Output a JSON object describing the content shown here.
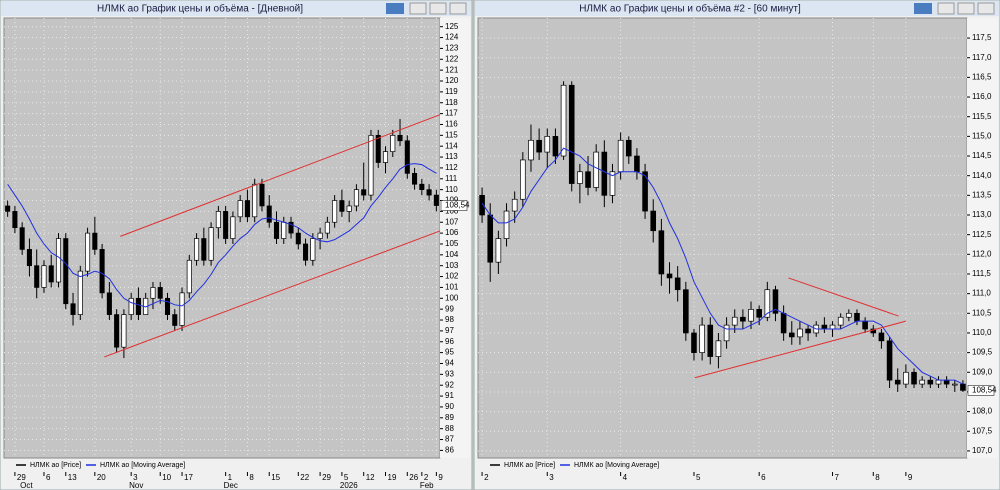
{
  "chart_data": [
    {
      "type": "candlestick",
      "title": "НЛМК ао График цены и объёма - [Дневной]",
      "categories": [
        null,
        "29",
        null,
        null,
        null,
        "6",
        null,
        null,
        "13",
        null,
        null,
        null,
        "20",
        null,
        null,
        null,
        null,
        "3",
        null,
        null,
        null,
        "10",
        null,
        null,
        "17",
        null,
        null,
        null,
        null,
        null,
        "1",
        null,
        null,
        "8",
        null,
        null,
        "15",
        null,
        null,
        null,
        "22",
        null,
        null,
        "29",
        null,
        null,
        "5",
        null,
        null,
        "12",
        null,
        null,
        "19",
        null,
        null,
        "26",
        null,
        "2",
        null,
        "9"
      ],
      "periods": [
        null,
        null,
        "Oct",
        null,
        null,
        null,
        null,
        null,
        null,
        null,
        null,
        null,
        null,
        null,
        null,
        null,
        null,
        "Nov",
        null,
        null,
        null,
        null,
        null,
        null,
        null,
        null,
        null,
        null,
        null,
        null,
        "Dec",
        null,
        null,
        null,
        null,
        null,
        null,
        null,
        null,
        null,
        null,
        null,
        null,
        null,
        null,
        null,
        "2026",
        null,
        null,
        null,
        null,
        null,
        null,
        null,
        null,
        null,
        null,
        "Feb",
        null,
        null
      ],
      "ylim": [
        85.3,
        125.8
      ],
      "yticks": [
        86,
        87,
        88,
        89,
        90,
        91,
        92,
        93,
        94,
        95,
        96,
        97,
        98,
        99,
        100,
        101,
        102,
        103,
        104,
        105,
        106,
        107,
        108,
        109,
        110,
        111,
        112,
        113,
        114,
        115,
        116,
        117,
        118,
        119,
        120,
        121,
        122,
        123,
        124,
        125
      ],
      "grid": true,
      "last": {
        "value": 108.54,
        "label": "108,54"
      },
      "series": [
        {
          "name": "НЛМК ао [Price]",
          "color": "#000000",
          "open": [
            108.5,
            108,
            106.5,
            104.5,
            103,
            101,
            103,
            101.5,
            105.5,
            99.5,
            98.5,
            102.5,
            106,
            104.5,
            100.5,
            98.5,
            95.5,
            98.5,
            100,
            98.5,
            100,
            101,
            100,
            98.5,
            97.5,
            100.5,
            103.5,
            105.5,
            103.5,
            106.5,
            108,
            105.5,
            107.5,
            109,
            107.5,
            110.5,
            108.5,
            107,
            105.5,
            107,
            106,
            105,
            103.5,
            105.5,
            106,
            107,
            109,
            108,
            108.5,
            110,
            109.5,
            115,
            112.5,
            113.5,
            115,
            114.5,
            111.5,
            110.5,
            110,
            109.5
          ],
          "high": [
            109,
            108.5,
            107,
            105.5,
            104.5,
            103.5,
            104,
            106,
            106,
            100.5,
            103,
            106.5,
            107.5,
            105,
            101.5,
            99,
            99,
            100.5,
            101,
            100.5,
            101.5,
            101.5,
            100.5,
            99,
            101,
            104,
            106,
            106.5,
            107,
            108.5,
            108.5,
            108,
            109.5,
            110,
            111,
            111,
            109.5,
            108,
            107.5,
            107.5,
            106.5,
            105.5,
            106,
            106.5,
            107.5,
            109.5,
            110,
            109,
            110.5,
            112.5,
            115.5,
            115.5,
            114,
            115.5,
            116.5,
            115,
            112,
            111,
            110.5,
            110
          ],
          "low": [
            107.5,
            106,
            104,
            102,
            100,
            100.5,
            101,
            101,
            99,
            97.5,
            98,
            102,
            104,
            100,
            98,
            95,
            94.5,
            98,
            98,
            98.5,
            99,
            99.5,
            98,
            97,
            97,
            100,
            103,
            103,
            103,
            105.5,
            105,
            105,
            107,
            107,
            107,
            108,
            106.5,
            105,
            105,
            105.5,
            104.5,
            103,
            103,
            104.5,
            105.5,
            106.5,
            107.5,
            107,
            108,
            109,
            109,
            112,
            111.5,
            113,
            114,
            111,
            110,
            109.5,
            109,
            108
          ],
          "close": [
            108,
            106.5,
            104.5,
            103,
            101,
            103,
            101.5,
            105.5,
            99.5,
            98.5,
            102.5,
            106,
            104.5,
            100.5,
            98.5,
            95.5,
            98.5,
            100,
            98.5,
            100,
            101,
            100,
            98.5,
            97.5,
            100.5,
            103.5,
            105.5,
            103.5,
            106.5,
            108,
            105.5,
            107.5,
            109,
            107.5,
            110.5,
            108.5,
            107,
            105.5,
            107,
            106,
            105,
            103.5,
            105.5,
            106,
            107,
            109,
            108,
            108.5,
            110,
            109.5,
            115,
            112.5,
            113.5,
            115,
            114.5,
            111.5,
            110.5,
            110,
            109.5,
            108.54
          ]
        },
        {
          "name": "НЛМК ао [Moving Average]",
          "color": "#2030e0",
          "values": [
            110.5,
            109.5,
            108.5,
            107.3,
            106,
            105,
            104.2,
            103.8,
            103.2,
            102.3,
            102,
            102.2,
            102.5,
            102.3,
            101.8,
            100.8,
            100,
            99.6,
            99.4,
            99.2,
            99.5,
            99.8,
            99.7,
            99.4,
            99.3,
            99.8,
            100.6,
            101.3,
            102.2,
            103.3,
            104,
            104.8,
            105.5,
            106,
            106.8,
            107.3,
            107.4,
            107.2,
            107,
            106.8,
            106.5,
            106,
            105.6,
            105.3,
            105.2,
            105.4,
            105.8,
            106.2,
            106.8,
            107.4,
            108.5,
            109.3,
            110.2,
            111,
            111.9,
            112.3,
            112.4,
            112.3,
            111.9,
            111.5
          ]
        }
      ],
      "trend_lines": [
        {
          "color": "#e03030",
          "x": [
            15.5,
            60.7
          ],
          "values": [
            105.7,
            116.9
          ]
        },
        {
          "color": "#e03030",
          "x": [
            13.3,
            60.7
          ],
          "values": [
            94.6,
            106.2
          ]
        }
      ]
    },
    {
      "type": "candlestick",
      "title": "НЛМК ао График цены и объёма #2 - [60 минут]",
      "categories": [
        "2",
        null,
        null,
        null,
        null,
        null,
        null,
        null,
        "3",
        null,
        null,
        null,
        null,
        null,
        null,
        null,
        null,
        "4",
        null,
        null,
        null,
        null,
        null,
        null,
        null,
        null,
        "5",
        null,
        null,
        null,
        null,
        null,
        null,
        null,
        "6",
        null,
        null,
        null,
        null,
        null,
        null,
        null,
        null,
        "7",
        null,
        null,
        null,
        null,
        "8",
        null,
        null,
        null,
        "9",
        null,
        null,
        null,
        null,
        null,
        null,
        null
      ],
      "ylim": [
        106.82,
        118.01
      ],
      "yticks": [
        {
          "value": 107,
          "label": "107,0"
        },
        {
          "value": 107.5,
          "label": "107,5"
        },
        {
          "value": 108,
          "label": "108,0"
        },
        {
          "value": 108.5,
          "label": "108,5"
        },
        {
          "value": 109,
          "label": "109,0"
        },
        {
          "value": 109.5,
          "label": "109,5"
        },
        {
          "value": 110,
          "label": "110,0"
        },
        {
          "value": 110.5,
          "label": "110,5"
        },
        {
          "value": 111,
          "label": "111,0"
        },
        {
          "value": 111.5,
          "label": "111,5"
        },
        {
          "value": 112,
          "label": "112,0"
        },
        {
          "value": 112.5,
          "label": "112,5"
        },
        {
          "value": 113,
          "label": "113,0"
        },
        {
          "value": 113.5,
          "label": "113,5"
        },
        {
          "value": 114,
          "label": "114,0"
        },
        {
          "value": 114.5,
          "label": "114,5"
        },
        {
          "value": 115,
          "label": "115,0"
        },
        {
          "value": 115.5,
          "label": "115,5"
        },
        {
          "value": 116,
          "label": "116,0"
        },
        {
          "value": 116.5,
          "label": "116,5"
        },
        {
          "value": 117,
          "label": "117,0"
        },
        {
          "value": 117.5,
          "label": "117,5"
        }
      ],
      "grid": true,
      "last": {
        "value": 108.54,
        "label": "108,54"
      },
      "series": [
        {
          "name": "НЛМК ао [Price]",
          "color": "#000000",
          "open": [
            113.5,
            113,
            111.8,
            112.4,
            113.1,
            113.4,
            114.4,
            114.9,
            114.6,
            115,
            114.5,
            116.3,
            113.8,
            114.1,
            113.7,
            114.6,
            113.5,
            114.1,
            114.9,
            114.5,
            114.1,
            113.1,
            112.6,
            111.5,
            111.4,
            111.1,
            110,
            109.5,
            110.2,
            109.4,
            109.8,
            110.2,
            110.4,
            110.3,
            110.6,
            110.4,
            111.1,
            110.5,
            110,
            109.9,
            110.1,
            110,
            110.2,
            110.1,
            110.2,
            110.4,
            110.5,
            110.3,
            110.1,
            110,
            109.8,
            108.8,
            108.7,
            109,
            108.7,
            108.8,
            108.7,
            108.8,
            108.7,
            108.7
          ],
          "high": [
            113.7,
            113.3,
            112.6,
            113.3,
            113.6,
            114.6,
            115.3,
            115.2,
            115.2,
            115.2,
            116.4,
            116.4,
            114.3,
            114.5,
            114.8,
            114.9,
            114.3,
            115.1,
            115,
            114.7,
            114.3,
            113.4,
            112.9,
            111.8,
            111.7,
            111.3,
            110.1,
            110.4,
            110.4,
            110,
            110.4,
            110.6,
            110.6,
            110.8,
            110.7,
            111.3,
            111.2,
            110.7,
            110.3,
            110.3,
            110.2,
            110.3,
            110.4,
            110.3,
            110.5,
            110.6,
            110.6,
            110.4,
            110.2,
            110.1,
            109.9,
            109.1,
            109.2,
            109.1,
            108.9,
            108.9,
            108.9,
            108.9,
            108.8,
            108.8
          ],
          "low": [
            112.8,
            111.3,
            111.5,
            112.2,
            112.8,
            113.2,
            114.1,
            114.4,
            114.2,
            114.3,
            114.4,
            113.6,
            113.3,
            113.5,
            113.6,
            113.2,
            113.3,
            113.9,
            114.3,
            113.9,
            112.9,
            112.3,
            111.2,
            111,
            110.8,
            109.8,
            109.3,
            109.3,
            109.2,
            109.1,
            109.6,
            110,
            110.1,
            110.1,
            110.2,
            110.3,
            110.3,
            109.8,
            109.7,
            109.7,
            109.8,
            109.9,
            110,
            109.9,
            110.1,
            110.3,
            110.2,
            110,
            109.9,
            109.6,
            108.6,
            108.5,
            108.6,
            108.6,
            108.6,
            108.6,
            108.6,
            108.6,
            108.5,
            108.5
          ],
          "close": [
            113,
            111.8,
            112.4,
            113.1,
            113.4,
            114.4,
            114.9,
            114.6,
            115,
            114.5,
            116.3,
            113.8,
            114.1,
            113.7,
            114.6,
            113.5,
            114.1,
            114.9,
            114.5,
            114.1,
            113.1,
            112.6,
            111.5,
            111.4,
            111.1,
            110,
            109.5,
            110.2,
            109.4,
            109.8,
            110.2,
            110.4,
            110.3,
            110.6,
            110.4,
            111.1,
            110.5,
            110,
            109.9,
            110.1,
            110,
            110.2,
            110.1,
            110.2,
            110.4,
            110.5,
            110.3,
            110.1,
            110,
            109.8,
            108.8,
            108.7,
            109,
            108.7,
            108.8,
            108.7,
            108.8,
            108.7,
            108.7,
            108.54
          ]
        },
        {
          "name": "НЛМК ао [Moving Average]",
          "color": "#2030e0",
          "values": [
            113.3,
            113,
            112.8,
            112.8,
            112.9,
            113.2,
            113.6,
            113.9,
            114.2,
            114.4,
            114.7,
            114.6,
            114.5,
            114.3,
            114.2,
            114.1,
            114,
            114.1,
            114.1,
            114.1,
            114,
            113.7,
            113.3,
            112.8,
            112.4,
            111.9,
            111.3,
            110.9,
            110.5,
            110.2,
            110.1,
            110.1,
            110.1,
            110.2,
            110.3,
            110.5,
            110.6,
            110.5,
            110.4,
            110.3,
            110.2,
            110.1,
            110.1,
            110.1,
            110.1,
            110.2,
            110.3,
            110.3,
            110.3,
            110.2,
            109.9,
            109.6,
            109.4,
            109.2,
            109,
            108.9,
            108.8,
            108.8,
            108.8,
            108.7
          ]
        }
      ],
      "trend_lines": [
        {
          "color": "#e03030",
          "x": [
            37.6,
            51.1
          ],
          "values": [
            111.4,
            110.43
          ]
        },
        {
          "color": "#e03030",
          "x": [
            26.1,
            52.0
          ],
          "values": [
            108.86,
            110.3
          ]
        }
      ]
    }
  ]
}
